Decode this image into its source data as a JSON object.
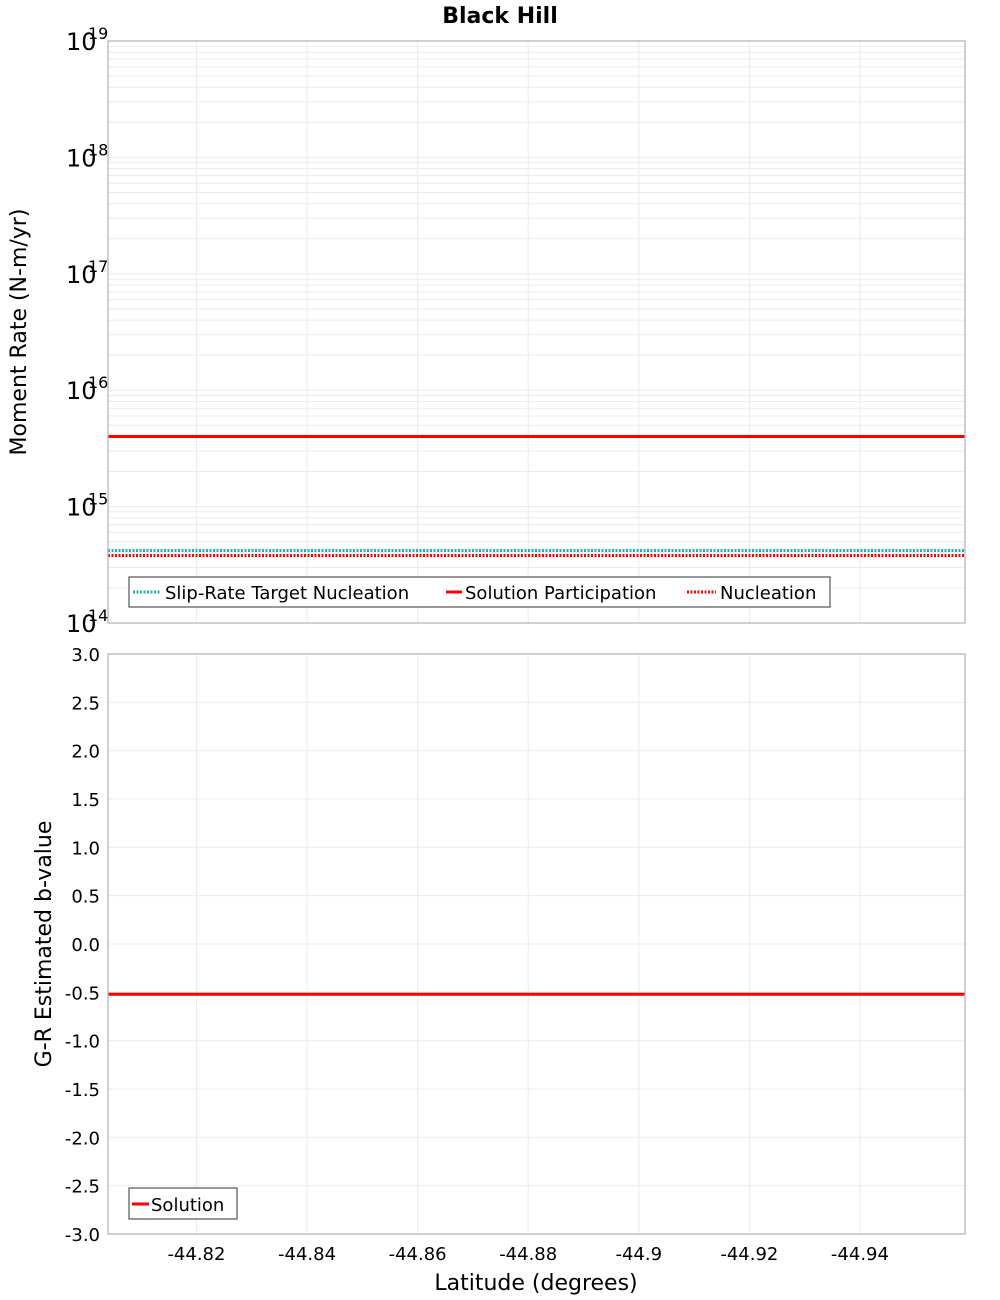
{
  "title": "Black Hill",
  "colors": {
    "cyan": "#1ab3b3",
    "red": "#ff0000",
    "grid": "#ebebeb",
    "frame": "#b0b0b0",
    "legend_border": "#555555"
  },
  "top_panel": {
    "ylabel": "Moment Rate (N-m/yr)",
    "y_ticks": [
      {
        "base": "10",
        "exp": "19"
      },
      {
        "base": "10",
        "exp": "18"
      },
      {
        "base": "10",
        "exp": "17"
      },
      {
        "base": "10",
        "exp": "16"
      },
      {
        "base": "10",
        "exp": "15"
      },
      {
        "base": "10",
        "exp": "14"
      }
    ],
    "legend": [
      {
        "label": "Slip-Rate Target Nucleation",
        "style": "dotted",
        "color": "#1ab3b3"
      },
      {
        "label": "Solution Participation",
        "style": "solid",
        "color": "#ff0000"
      },
      {
        "label": "Nucleation",
        "style": "dotted",
        "color": "#ff0000"
      }
    ]
  },
  "bottom_panel": {
    "ylabel": "G-R Estimated b-value",
    "y_ticks": [
      "3.0",
      "2.5",
      "2.0",
      "1.5",
      "1.0",
      "0.5",
      "0.0",
      "-0.5",
      "-1.0",
      "-1.5",
      "-2.0",
      "-2.5",
      "-3.0"
    ],
    "legend": [
      {
        "label": "Solution",
        "style": "solid",
        "color": "#ff0000"
      }
    ]
  },
  "x_axis": {
    "xlabel": "Latitude (degrees)",
    "ticks": [
      "-44.82",
      "-44.84",
      "-44.86",
      "-44.88",
      "-44.9",
      "-44.92",
      "-44.94"
    ]
  },
  "chart_data": [
    {
      "type": "line",
      "title": "Black Hill",
      "xlabel": "Latitude (degrees)",
      "ylabel": "Moment Rate (N-m/yr)",
      "yscale": "log",
      "ylim": [
        100000000000000.0,
        1e+19
      ],
      "xlim": [
        -44.804,
        -44.959
      ],
      "x_ticks": [
        -44.82,
        -44.84,
        -44.86,
        -44.88,
        -44.9,
        -44.92,
        -44.94
      ],
      "grid": true,
      "legend_position": "lower left",
      "series": [
        {
          "name": "Slip-Rate Target Nucleation",
          "style": "dotted",
          "color": "#1ab3b3",
          "x": [
            -44.804,
            -44.885,
            -44.959
          ],
          "values": [
            420000000000000.0,
            420000000000000.0,
            420000000000000.0
          ]
        },
        {
          "name": "Solution Participation",
          "style": "solid",
          "color": "#ff0000",
          "x": [
            -44.804,
            -44.885,
            -44.959
          ],
          "values": [
            4000000000000000.0,
            4000000000000000.0,
            4000000000000000.0
          ]
        },
        {
          "name": "Nucleation",
          "style": "dotted",
          "color": "#ff0000",
          "x": [
            -44.804,
            -44.885,
            -44.959
          ],
          "values": [
            380000000000000.0,
            380000000000000.0,
            380000000000000.0
          ]
        }
      ]
    },
    {
      "type": "line",
      "title": "",
      "xlabel": "Latitude (degrees)",
      "ylabel": "G-R Estimated b-value",
      "ylim": [
        -3.0,
        3.0
      ],
      "xlim": [
        -44.804,
        -44.959
      ],
      "x_ticks": [
        -44.82,
        -44.84,
        -44.86,
        -44.88,
        -44.9,
        -44.92,
        -44.94
      ],
      "grid": true,
      "legend_position": "lower left",
      "series": [
        {
          "name": "Solution",
          "style": "solid",
          "color": "#ff0000",
          "x": [
            -44.804,
            -44.885,
            -44.959
          ],
          "values": [
            -0.52,
            -0.52,
            -0.52
          ]
        }
      ]
    }
  ]
}
